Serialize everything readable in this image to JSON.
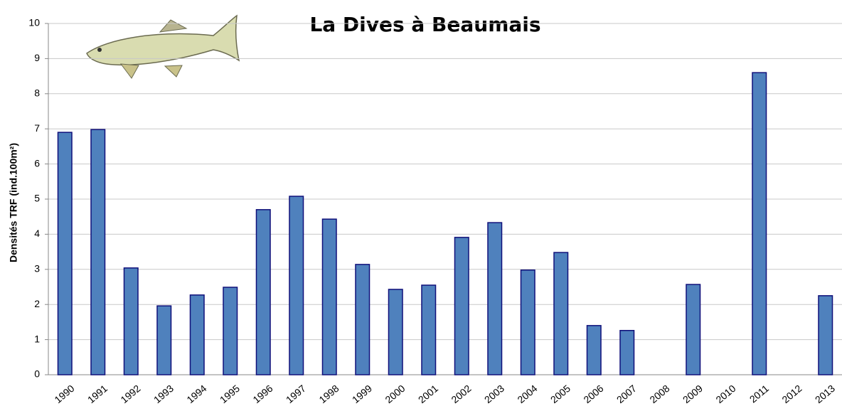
{
  "chart_data": {
    "type": "bar",
    "title": "La Dives à Beaumais",
    "y_label": "Densités TRF (ind.100m²)",
    "categories": [
      "1990",
      "1991",
      "1992",
      "1993",
      "1994",
      "1995",
      "1996",
      "1997",
      "1998",
      "1999",
      "2000",
      "2001",
      "2002",
      "2003",
      "2004",
      "2005",
      "2006",
      "2007",
      "2008",
      "2009",
      "2010",
      "2011",
      "2012",
      "2013"
    ],
    "values": [
      6.9,
      6.98,
      3.04,
      1.96,
      2.27,
      2.49,
      4.7,
      5.08,
      4.43,
      3.14,
      2.43,
      2.55,
      3.91,
      4.33,
      2.98,
      3.48,
      1.4,
      1.26,
      null,
      2.57,
      null,
      8.6,
      null,
      2.25
    ],
    "color": "#4f81bd",
    "edge_color": "#10107a",
    "ylim": [
      0,
      10
    ],
    "yticks": [
      0,
      1,
      2,
      3,
      4,
      5,
      6,
      7,
      8,
      9,
      10
    ],
    "grid": true
  }
}
